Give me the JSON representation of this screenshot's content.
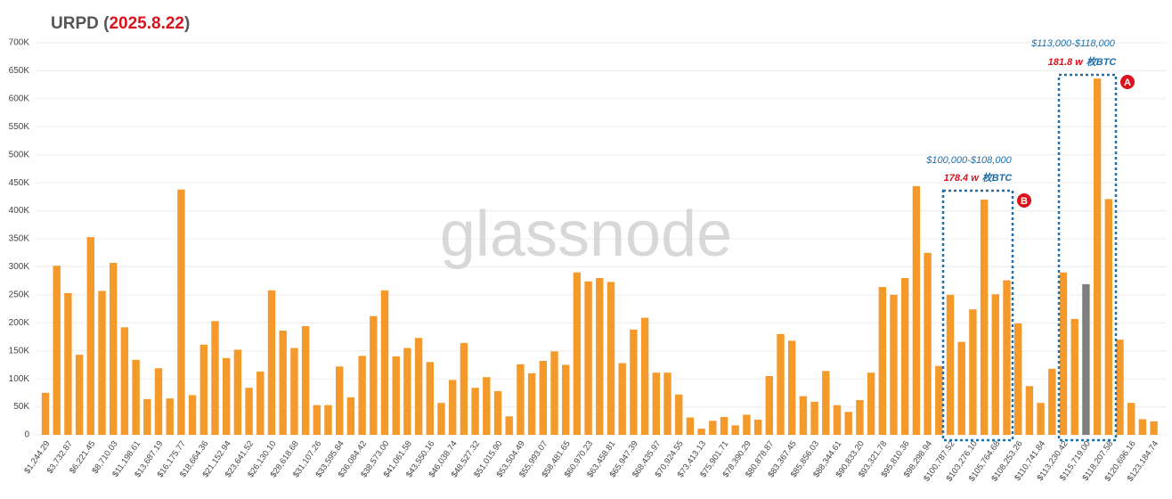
{
  "chart_data": {
    "type": "bar",
    "title_parts": [
      "URPD (",
      "2025.8.22",
      ")"
    ],
    "watermark": "glassnode",
    "categories": [
      "$1,244.29",
      null,
      "$3,732.87",
      null,
      "$6,221.45",
      null,
      "$8,710.03",
      null,
      "$11,198.61",
      null,
      "$13,687.19",
      null,
      "$16,175.77",
      null,
      "$18,664.36",
      null,
      "$21,152.94",
      null,
      "$23,641.52",
      null,
      "$26,130.10",
      null,
      "$28,618.68",
      null,
      "$31,107.26",
      null,
      "$33,595.84",
      null,
      "$36,084.42",
      null,
      "$38,573.00",
      null,
      "$41,061.58",
      null,
      "$43,550.16",
      null,
      "$46,038.74",
      null,
      "$48,527.32",
      null,
      "$51,015.90",
      null,
      "$53,504.49",
      null,
      "$55,993.07",
      null,
      "$58,481.65",
      null,
      "$60,970.23",
      null,
      "$63,458.81",
      null,
      "$65,947.39",
      null,
      "$68,435.97",
      null,
      "$70,924.55",
      null,
      "$73,413.13",
      null,
      "$75,901.71",
      null,
      "$78,390.29",
      null,
      "$80,878.87",
      null,
      "$83,367.45",
      null,
      "$85,856.03",
      null,
      "$88,344.61",
      null,
      "$90,833.20",
      null,
      "$93,321.78",
      null,
      "$95,810.36",
      null,
      "$98,298.94",
      null,
      "$100,787.52",
      null,
      "$103,276.10",
      null,
      "$105,764.68",
      null,
      "$108,253.26",
      null,
      "$110,741.84",
      null,
      "$113,230.42",
      null,
      "$115,719.00",
      null,
      "$118,207.58",
      null,
      "$120,696.16",
      null,
      "$123,184.74"
    ],
    "values": [
      75000,
      302000,
      253000,
      143000,
      353000,
      257000,
      307000,
      192000,
      134000,
      64000,
      119000,
      65000,
      438000,
      71000,
      161000,
      203000,
      137000,
      152000,
      84000,
      113000,
      258000,
      186000,
      155000,
      194000,
      53000,
      53000,
      122000,
      67000,
      141000,
      212000,
      258000,
      140000,
      155000,
      173000,
      130000,
      57000,
      98000,
      164000,
      84000,
      103000,
      78000,
      33000,
      126000,
      110000,
      132000,
      149000,
      125000,
      290000,
      274000,
      280000,
      273000,
      128000,
      188000,
      209000,
      111000,
      111000,
      72000,
      31000,
      11000,
      25000,
      32000,
      17000,
      36000,
      27000,
      105000,
      180000,
      168000,
      69000,
      59000,
      114000,
      53000,
      41000,
      62000,
      111000,
      264000,
      250000,
      280000,
      444000,
      325000,
      123000,
      250000,
      166000,
      224000,
      420000,
      251000,
      276000,
      199000,
      87000,
      57000,
      118000,
      290000,
      207000,
      269000,
      636000,
      421000,
      170000,
      57000,
      28000,
      24000
    ],
    "color": "#f39a2b",
    "highlight_color": "#7f7f7f",
    "highlight_category": "$115,719.00",
    "ylim": [
      0,
      700000
    ],
    "yticks": [
      {
        "value": 0,
        "label": "0"
      },
      {
        "value": 50000,
        "label": "50K"
      },
      {
        "value": 100000,
        "label": "100K"
      },
      {
        "value": 150000,
        "label": "150K"
      },
      {
        "value": 200000,
        "label": "200K"
      },
      {
        "value": 250000,
        "label": "250K"
      },
      {
        "value": 300000,
        "label": "300K"
      },
      {
        "value": 350000,
        "label": "350K"
      },
      {
        "value": 400000,
        "label": "400K"
      },
      {
        "value": 450000,
        "label": "450K"
      },
      {
        "value": 500000,
        "label": "500K"
      },
      {
        "value": 550000,
        "label": "550K"
      },
      {
        "value": 600000,
        "label": "600K"
      },
      {
        "value": 650000,
        "label": "650K"
      },
      {
        "value": 700000,
        "label": "700K"
      }
    ],
    "grid": true,
    "annotations": [
      {
        "range": "$113,000-$118,000",
        "amount": "181.8 w",
        "unit": "枚BTC",
        "marker": "A"
      },
      {
        "range": "$100,000-$108,000",
        "amount": "178.4 w",
        "unit": "枚BTC",
        "marker": "B"
      }
    ]
  }
}
